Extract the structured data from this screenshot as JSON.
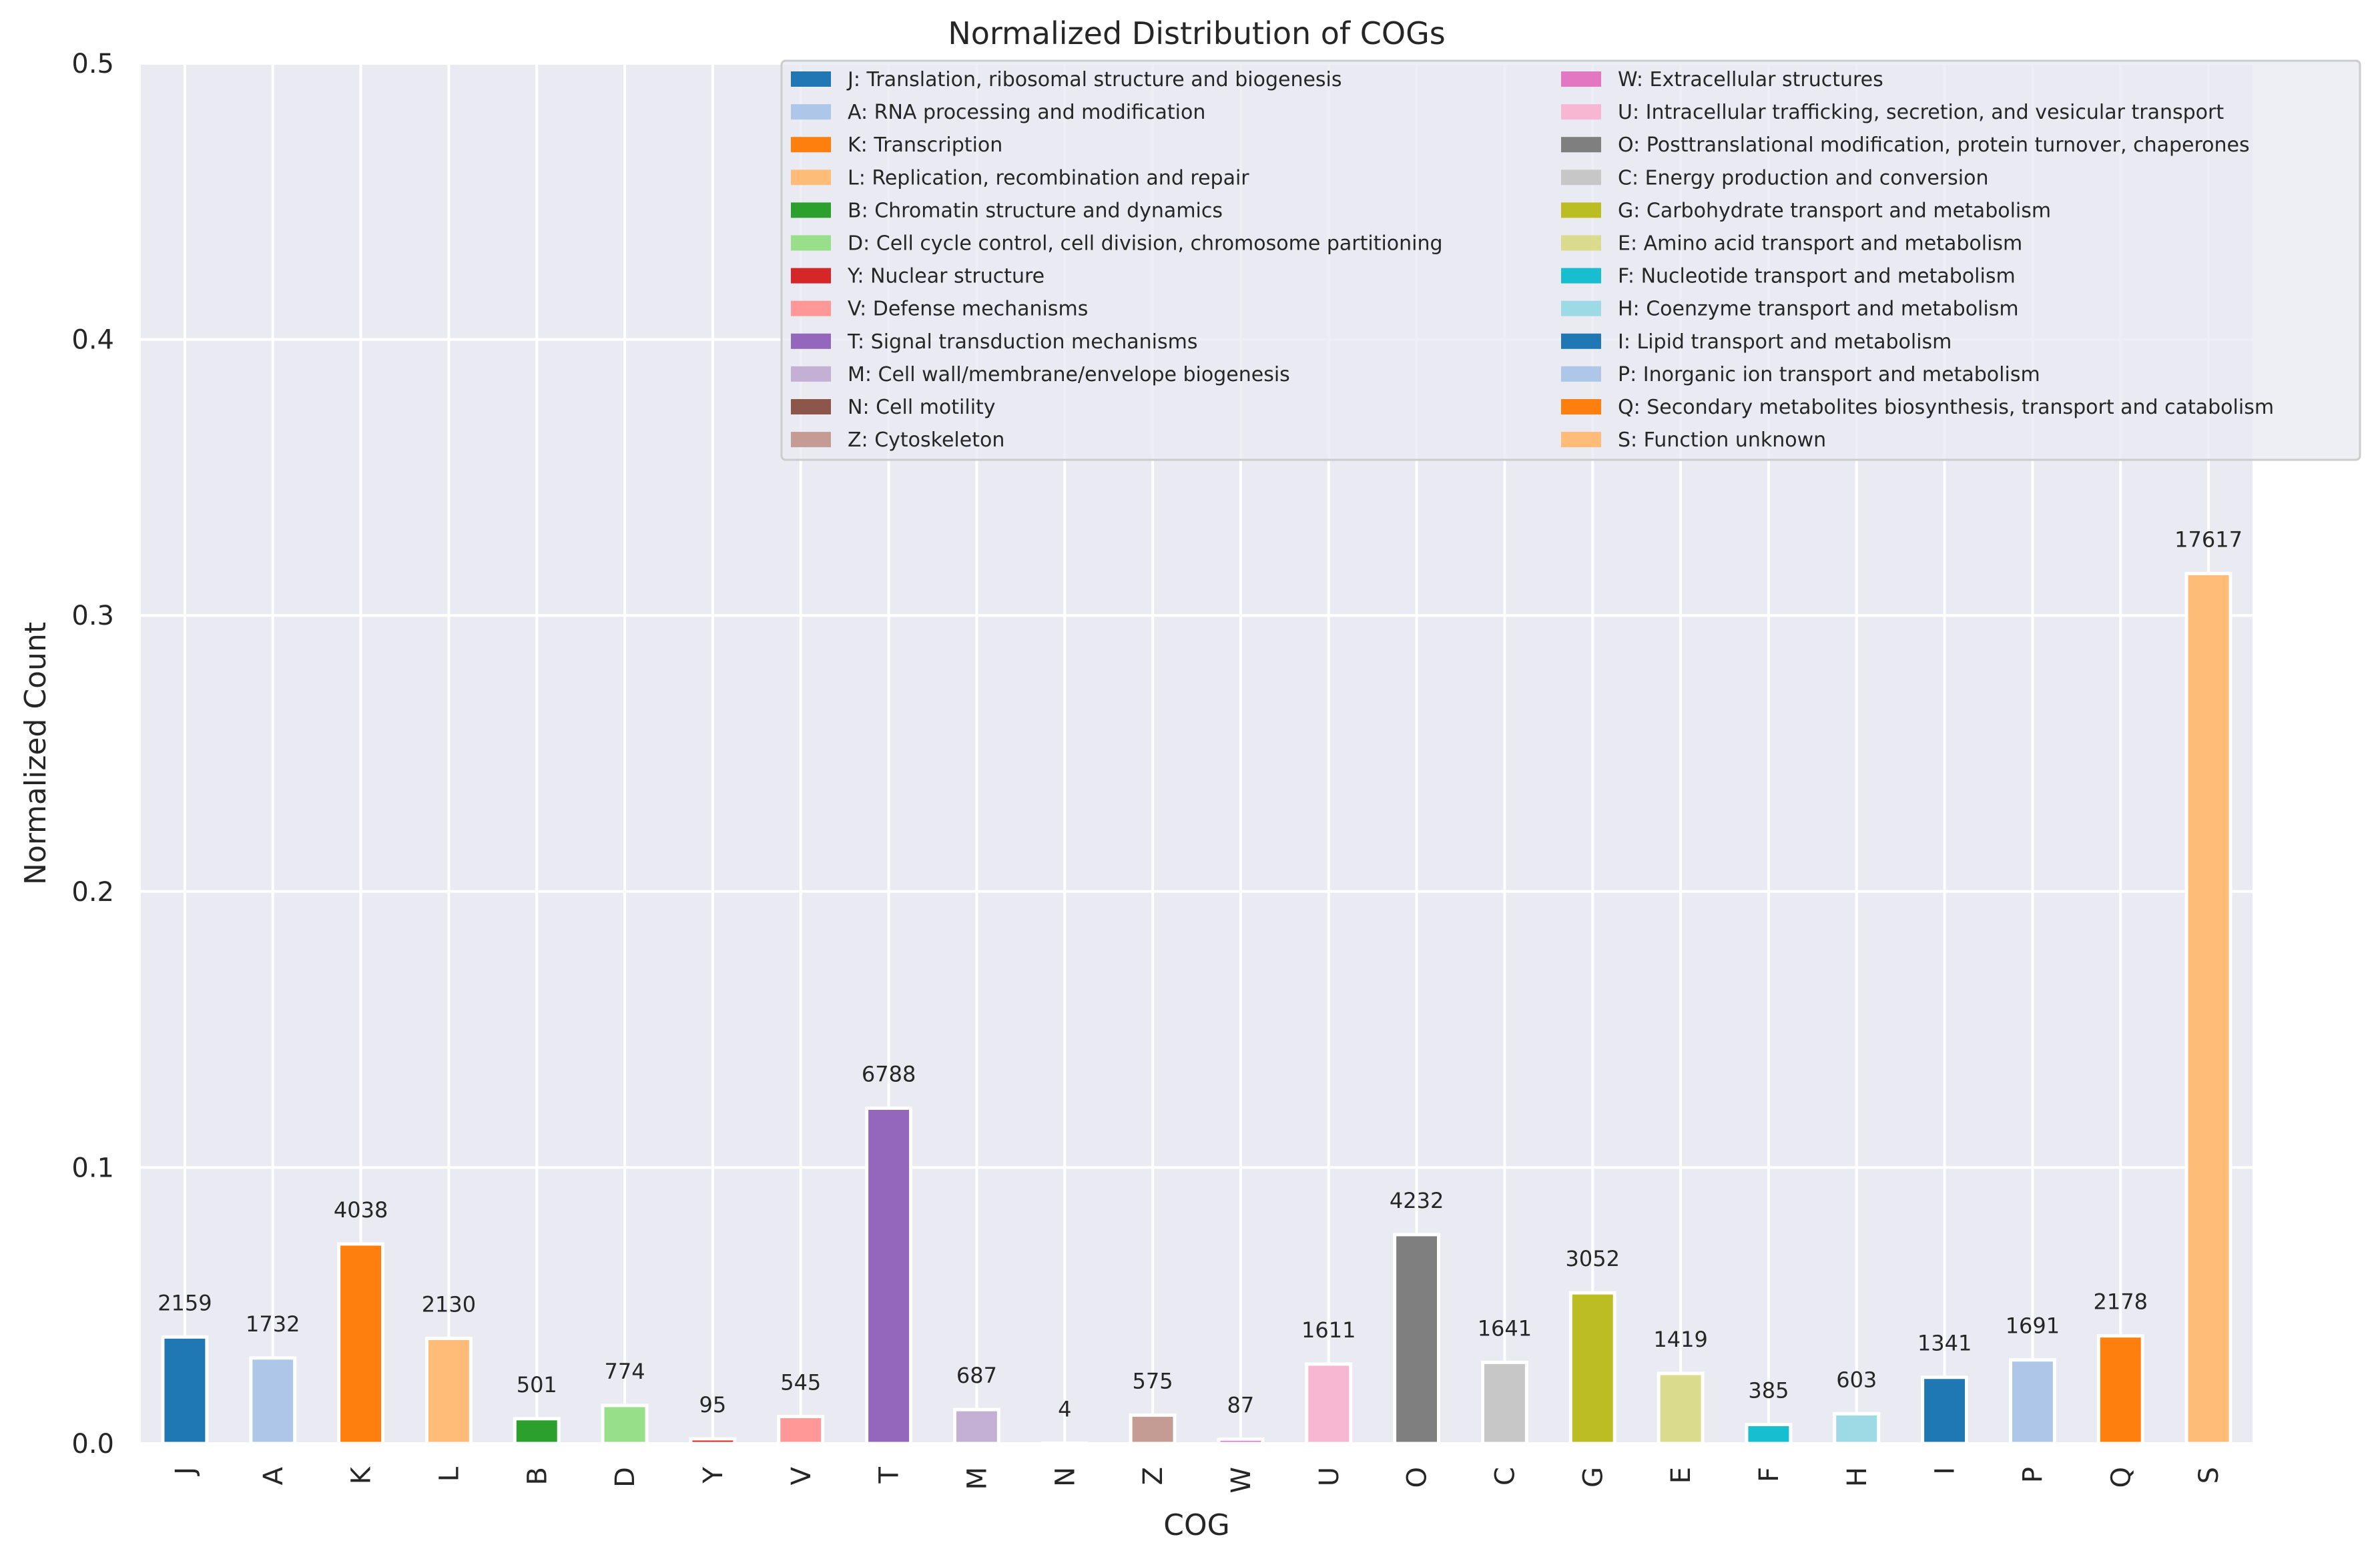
{
  "chart_data": {
    "type": "bar",
    "title": "Normalized Distribution of COGs",
    "xlabel": "COG",
    "ylabel": "Normalized Count",
    "ylim": [
      0,
      0.5
    ],
    "yticks": [
      "0.0",
      "0.1",
      "0.2",
      "0.3",
      "0.4",
      "0.5"
    ],
    "ytick_values": [
      0,
      0.1,
      0.2,
      0.3,
      0.4,
      0.5
    ],
    "grid": true,
    "legend_position": "top-right",
    "legend_columns": 2,
    "categories": [
      "J",
      "A",
      "K",
      "L",
      "B",
      "D",
      "Y",
      "V",
      "T",
      "M",
      "N",
      "Z",
      "W",
      "U",
      "O",
      "C",
      "G",
      "E",
      "F",
      "H",
      "I",
      "P",
      "Q",
      "S"
    ],
    "counts": [
      2159,
      1732,
      4038,
      2130,
      501,
      774,
      95,
      545,
      6788,
      687,
      4,
      575,
      87,
      1611,
      4232,
      1641,
      3052,
      1419,
      385,
      603,
      1341,
      1691,
      2178,
      17617
    ],
    "values": [
      0.0386,
      0.031,
      0.0723,
      0.0381,
      0.009,
      0.0138,
      0.0017,
      0.0098,
      0.1215,
      0.0123,
      0.0001,
      0.0103,
      0.0016,
      0.0288,
      0.0757,
      0.0294,
      0.0546,
      0.0254,
      0.0069,
      0.0108,
      0.024,
      0.0303,
      0.039,
      0.3152
    ],
    "colors": [
      "#1f77b4",
      "#aec7e8",
      "#ff7f0e",
      "#ffbb78",
      "#2ca02c",
      "#98df8a",
      "#d62728",
      "#ff9896",
      "#9467bd",
      "#c5b0d5",
      "#8c564b",
      "#c49c94",
      "#e377c2",
      "#f7b6d2",
      "#7f7f7f",
      "#c7c7c7",
      "#bcbd22",
      "#dbdb8d",
      "#17becf",
      "#9edae5",
      "#1f77b4",
      "#aec7e8",
      "#ff7f0e",
      "#ffbb78"
    ],
    "legend": [
      "J: Translation, ribosomal structure and biogenesis",
      "A: RNA processing and modification",
      "K: Transcription",
      "L: Replication, recombination and repair",
      "B: Chromatin structure and dynamics",
      "D: Cell cycle control, cell division, chromosome partitioning",
      "Y: Nuclear structure",
      "V: Defense mechanisms",
      "T: Signal transduction mechanisms",
      "M: Cell wall/membrane/envelope biogenesis",
      "N: Cell motility",
      "Z: Cytoskeleton",
      "W: Extracellular structures",
      "U: Intracellular trafficking, secretion, and vesicular transport",
      "O: Posttranslational modification, protein turnover, chaperones",
      "C: Energy production and conversion",
      "G: Carbohydrate transport and metabolism",
      "E: Amino acid transport and metabolism",
      "F: Nucleotide transport and metabolism",
      "H: Coenzyme transport and metabolism",
      "I: Lipid transport and metabolism",
      "P: Inorganic ion transport and metabolism",
      "Q: Secondary metabolites biosynthesis, transport and catabolism",
      "S: Function unknown"
    ],
    "style": {
      "plot_background": "#eaeaf2",
      "grid_color": "#ffffff",
      "text_color": "#262626"
    }
  }
}
